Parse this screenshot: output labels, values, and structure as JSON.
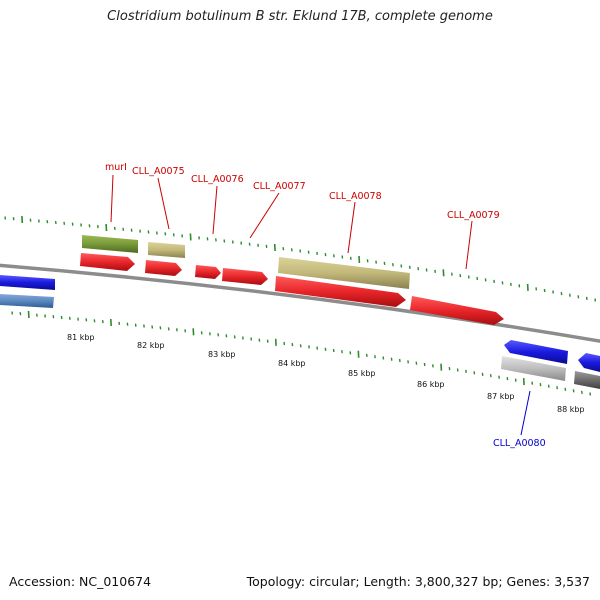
{
  "title": "Clostridium botulinum B str. Eklund 17B, complete genome",
  "footer": {
    "accession": "Accession: NC_010674",
    "summary": "Topology: circular; Length: 3,800,327 bp; Genes: 3,537"
  },
  "colors": {
    "gene_forward": "#e8262a",
    "gene_reverse": "#1a1ae0",
    "feature_olive": "#7a9a3a",
    "feature_khaki": "#c2b87a",
    "feature_steelblue": "#5a88c0",
    "feature_gray": "#bdbdbd",
    "feature_darkgray": "#6e6e6e",
    "tick_green": "#2e8b2e",
    "label_red": "#cc0000",
    "label_blue": "#0000cc",
    "backbone": "#8c8c8c"
  },
  "scale_labels": [
    "81 kbp",
    "82 kbp",
    "83 kbp",
    "84 kbp",
    "85 kbp",
    "86 kbp",
    "87 kbp",
    "88 kbp"
  ],
  "gene_labels": [
    {
      "text": "murI",
      "color": "#cc0000"
    },
    {
      "text": "CLL_A0075",
      "color": "#cc0000"
    },
    {
      "text": "CLL_A0076",
      "color": "#cc0000"
    },
    {
      "text": "CLL_A0077",
      "color": "#cc0000"
    },
    {
      "text": "CLL_A0078",
      "color": "#cc0000"
    },
    {
      "text": "CLL_A0079",
      "color": "#cc0000"
    },
    {
      "text": "CLL_A0080",
      "color": "#0000cc"
    }
  ]
}
